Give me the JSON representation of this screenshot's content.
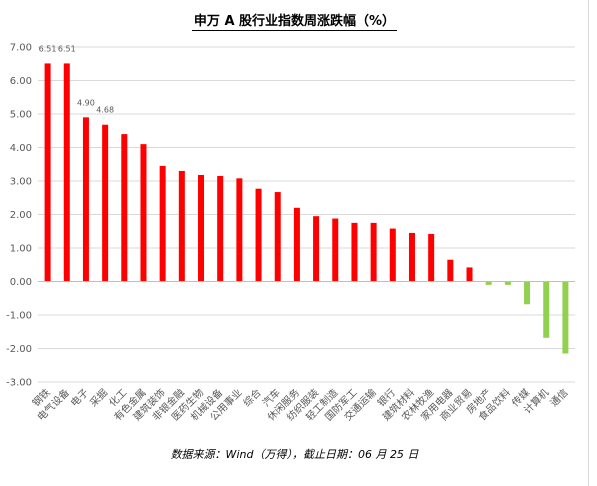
{
  "chart_data": {
    "type": "bar",
    "title": "申万 A 股行业指数周涨跌幅（%）",
    "source_note": "数据来源：Wind（万得），截止日期：06 月 25 日",
    "ylim": [
      -3.0,
      7.0
    ],
    "yticks": [
      "7.00",
      "6.00",
      "5.00",
      "4.00",
      "3.00",
      "2.00",
      "1.00",
      "0.00",
      "-1.00",
      "-2.00",
      "-3.00"
    ],
    "grid": true,
    "categories": [
      "钢铁",
      "电气设备",
      "电子",
      "采掘",
      "化工",
      "有色金属",
      "建筑装饰",
      "非银金融",
      "医药生物",
      "机械设备",
      "公用事业",
      "综合",
      "汽车",
      "休闲服务",
      "纺织服装",
      "轻工制造",
      "国防军工",
      "交通运输",
      "银行",
      "建筑材料",
      "农林牧渔",
      "家用电器",
      "商业贸易",
      "房地产",
      "食品饮料",
      "传媒",
      "计算机",
      "通信"
    ],
    "values": [
      6.51,
      6.51,
      4.9,
      4.68,
      4.4,
      4.1,
      3.45,
      3.3,
      3.18,
      3.15,
      3.08,
      2.77,
      2.67,
      2.2,
      1.95,
      1.88,
      1.75,
      1.75,
      1.58,
      1.45,
      1.42,
      0.65,
      0.42,
      -0.1,
      -0.1,
      -0.68,
      -1.68,
      -2.15
    ],
    "data_labels": [
      {
        "index": 0,
        "text": "6.51"
      },
      {
        "index": 1,
        "text": "6.51"
      },
      {
        "index": 2,
        "text": "4.90"
      },
      {
        "index": 3,
        "text": "4.68"
      }
    ],
    "colors": {
      "positive": "#ff0000",
      "negative": "#92d050",
      "grid": "#d9d9d9",
      "axis": "#bfbfbf",
      "text": "#595959"
    }
  }
}
